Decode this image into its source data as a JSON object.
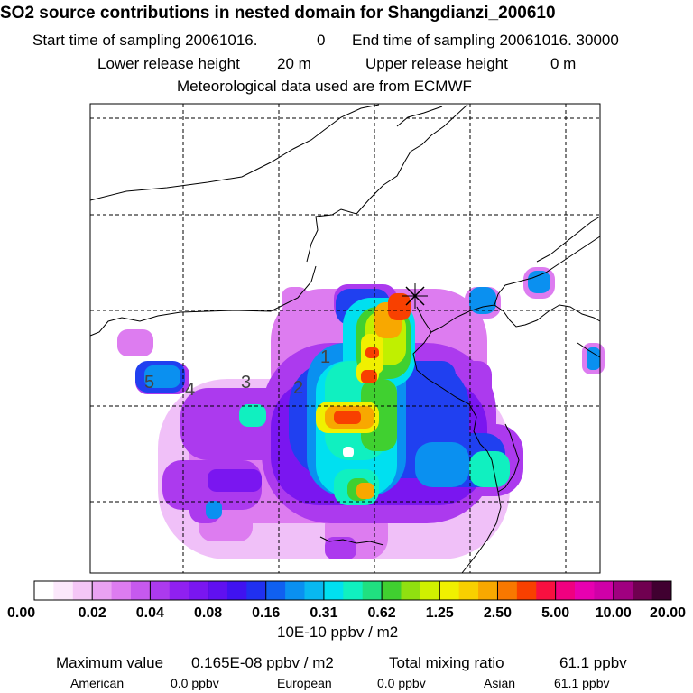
{
  "header": {
    "title": "SO2 source contributions in nested domain for Shangdianzi_200610",
    "start_label": "Start time of sampling 20061016.",
    "start_value": "0",
    "end_label": "End time of sampling 20061016. 30000",
    "lower_label": "Lower release height",
    "lower_value": "20 m",
    "upper_label": "Upper release height",
    "upper_value": "0 m",
    "met_line": "Meteorological data used are from ECMWF"
  },
  "colorbar": {
    "colors": [
      "#ffffff",
      "#fbe8fb",
      "#f4c6f6",
      "#eaa2f2",
      "#dd7cf0",
      "#c659ee",
      "#ac3aee",
      "#9020f0",
      "#7a16f0",
      "#6010f0",
      "#4012f0",
      "#2030f0",
      "#1060f0",
      "#0a90f0",
      "#08b8f0",
      "#00e0f0",
      "#10f0c0",
      "#20e080",
      "#40d030",
      "#90e010",
      "#d0f000",
      "#f0f000",
      "#f8d000",
      "#f8a800",
      "#f87800",
      "#f84000",
      "#f81040",
      "#f00080",
      "#e800b0",
      "#d000a8",
      "#a00080",
      "#700050",
      "#400030"
    ],
    "tick_labels": [
      "0.00",
      "0.02",
      "0.04",
      "0.08",
      "0.16",
      "0.31",
      "0.62",
      "1.25",
      "2.50",
      "5.00",
      "10.00",
      "20.00"
    ],
    "unit": "10E-10 ppbv / m2"
  },
  "map": {
    "region_labels": [
      "1",
      "2",
      "3",
      "4",
      "5"
    ],
    "receptor_marker": "receptor-x-marker"
  },
  "chart_data": {
    "type": "heatmap",
    "title": "SO2 source contributions in nested domain for Shangdianzi_200610",
    "unit": "10E-10 ppbv / m2",
    "scale_levels": [
      0.0,
      0.02,
      0.04,
      0.08,
      0.16,
      0.31,
      0.62,
      1.25,
      2.5,
      5.0,
      10.0,
      20.0
    ],
    "grid": true,
    "legend_placement": "bottom"
  },
  "footer": {
    "max_label": "Maximum value",
    "max_value": "0.165E-08 ppbv / m2",
    "total_label": "Total mixing ratio",
    "total_value": "61.1 ppbv",
    "american_label": "American",
    "american_value": "0.0 ppbv",
    "european_label": "European",
    "european_value": "0.0 ppbv",
    "asian_label": "Asian",
    "asian_value": "61.1 ppbv"
  }
}
